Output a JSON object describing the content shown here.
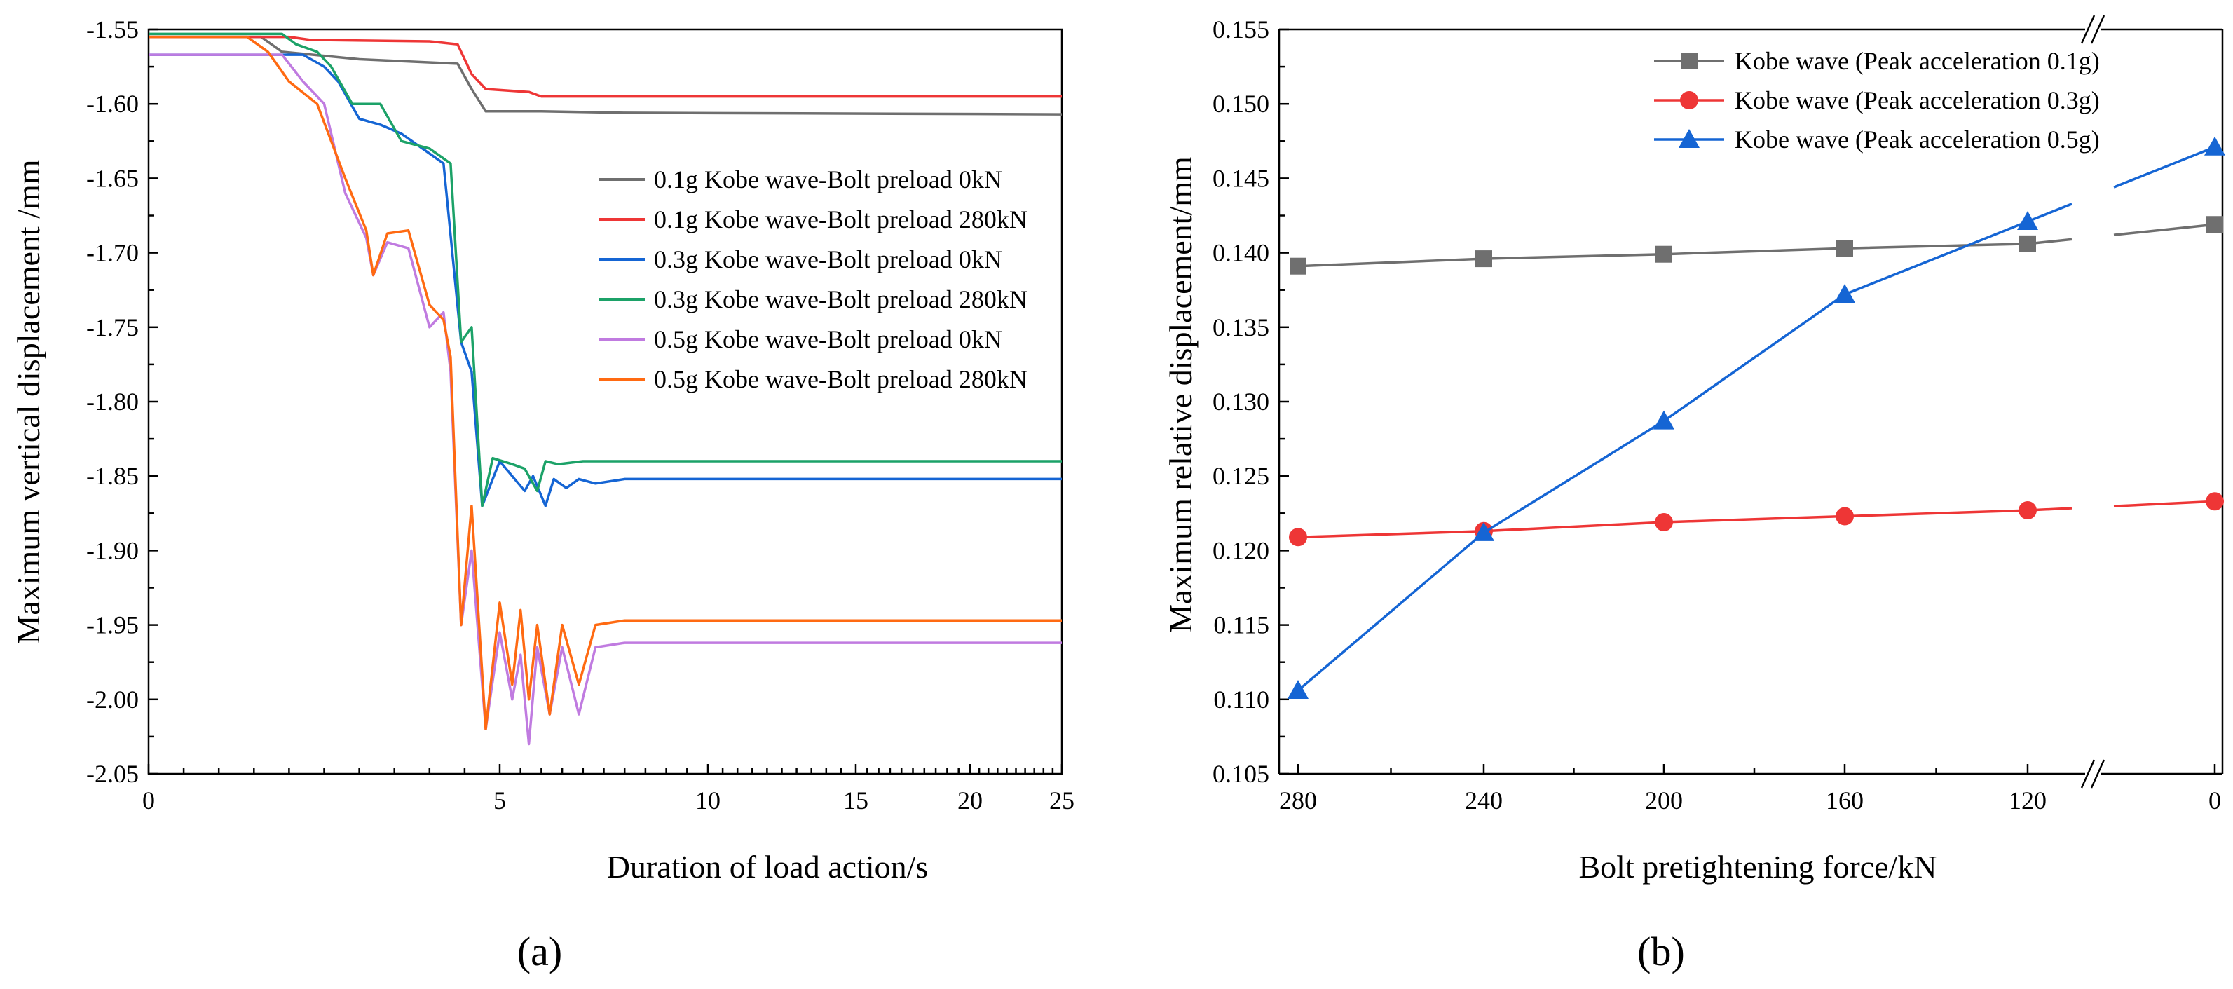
{
  "colors": {
    "gray": "#6f6f6f",
    "red": "#ee3636",
    "blue": "#1565d4",
    "green": "#1ca268",
    "purple": "#c07be0",
    "orange": "#ff6a12"
  },
  "panel_a_label": "(a)",
  "panel_b_label": "(b)",
  "chart_data": [
    {
      "type": "line",
      "title": "",
      "xlabel": "Duration of load action/s",
      "ylabel": "Maximum vertical displacement /mm",
      "xlim": [
        0,
        25
      ],
      "ylim": [
        -2.05,
        -1.55
      ],
      "x_tick_labels": [
        "0",
        "5",
        "10",
        "15",
        "20",
        "25"
      ],
      "y_tick_labels": [
        "-1.55",
        "-1.60",
        "-1.65",
        "-1.70",
        "-1.75",
        "-1.80",
        "-1.85",
        "-1.90",
        "-1.95",
        "-2.00",
        "-2.05"
      ],
      "legend_position": "right",
      "series": [
        {
          "name": "0.1g Kobe wave-Bolt preload 0kN",
          "color": "gray",
          "points": [
            [
              0,
              -1.555
            ],
            [
              1.6,
              -1.555
            ],
            [
              1.9,
              -1.565
            ],
            [
              3.0,
              -1.57
            ],
            [
              4.4,
              -1.573
            ],
            [
              4.6,
              -1.59
            ],
            [
              4.8,
              -1.605
            ],
            [
              6,
              -1.605
            ],
            [
              8,
              -1.606
            ],
            [
              25,
              -1.607
            ]
          ]
        },
        {
          "name": "0.1g Kobe wave-Bolt preload 280kN",
          "color": "red",
          "points": [
            [
              0,
              -1.555
            ],
            [
              2.0,
              -1.555
            ],
            [
              2.3,
              -1.557
            ],
            [
              4.0,
              -1.558
            ],
            [
              4.4,
              -1.56
            ],
            [
              4.6,
              -1.58
            ],
            [
              4.8,
              -1.59
            ],
            [
              5.7,
              -1.592
            ],
            [
              6.0,
              -1.595
            ],
            [
              25,
              -1.595
            ]
          ]
        },
        {
          "name": "0.3g Kobe wave-Bolt preload 0kN",
          "color": "blue",
          "points": [
            [
              0,
              -1.567
            ],
            [
              2.2,
              -1.567
            ],
            [
              2.5,
              -1.575
            ],
            [
              2.7,
              -1.585
            ],
            [
              3.0,
              -1.61
            ],
            [
              3.3,
              -1.614
            ],
            [
              3.6,
              -1.62
            ],
            [
              3.9,
              -1.63
            ],
            [
              4.2,
              -1.64
            ],
            [
              4.45,
              -1.76
            ],
            [
              4.6,
              -1.78
            ],
            [
              4.75,
              -1.87
            ],
            [
              5.0,
              -1.84
            ],
            [
              5.3,
              -1.85
            ],
            [
              5.6,
              -1.86
            ],
            [
              5.8,
              -1.85
            ],
            [
              6.1,
              -1.87
            ],
            [
              6.3,
              -1.852
            ],
            [
              6.6,
              -1.858
            ],
            [
              6.9,
              -1.852
            ],
            [
              7.3,
              -1.855
            ],
            [
              8,
              -1.852
            ],
            [
              25,
              -1.852
            ]
          ]
        },
        {
          "name": "0.3g Kobe wave-Bolt preload 280kN",
          "color": "green",
          "points": [
            [
              0,
              -1.553
            ],
            [
              1.9,
              -1.553
            ],
            [
              2.1,
              -1.56
            ],
            [
              2.4,
              -1.565
            ],
            [
              2.6,
              -1.575
            ],
            [
              2.9,
              -1.6
            ],
            [
              3.3,
              -1.6
            ],
            [
              3.6,
              -1.625
            ],
            [
              4.0,
              -1.63
            ],
            [
              4.3,
              -1.64
            ],
            [
              4.45,
              -1.76
            ],
            [
              4.6,
              -1.75
            ],
            [
              4.75,
              -1.87
            ],
            [
              4.9,
              -1.838
            ],
            [
              5.3,
              -1.842
            ],
            [
              5.6,
              -1.845
            ],
            [
              5.9,
              -1.86
            ],
            [
              6.1,
              -1.84
            ],
            [
              6.4,
              -1.842
            ],
            [
              7,
              -1.84
            ],
            [
              25,
              -1.84
            ]
          ]
        },
        {
          "name": "0.5g Kobe wave-Bolt preload 0kN",
          "color": "purple",
          "points": [
            [
              0,
              -1.567
            ],
            [
              1.9,
              -1.567
            ],
            [
              2.2,
              -1.585
            ],
            [
              2.5,
              -1.6
            ],
            [
              2.8,
              -1.66
            ],
            [
              3.1,
              -1.69
            ],
            [
              3.2,
              -1.715
            ],
            [
              3.4,
              -1.693
            ],
            [
              3.7,
              -1.697
            ],
            [
              4.0,
              -1.75
            ],
            [
              4.2,
              -1.74
            ],
            [
              4.3,
              -1.78
            ],
            [
              4.45,
              -1.95
            ],
            [
              4.6,
              -1.9
            ],
            [
              4.8,
              -2.02
            ],
            [
              5.0,
              -1.955
            ],
            [
              5.3,
              -2.0
            ],
            [
              5.5,
              -1.97
            ],
            [
              5.7,
              -2.03
            ],
            [
              5.9,
              -1.965
            ],
            [
              6.2,
              -2.01
            ],
            [
              6.5,
              -1.965
            ],
            [
              6.9,
              -2.01
            ],
            [
              7.3,
              -1.965
            ],
            [
              8,
              -1.962
            ],
            [
              25,
              -1.962
            ]
          ]
        },
        {
          "name": "0.5g Kobe wave-Bolt preload 280kN",
          "color": "orange",
          "points": [
            [
              0,
              -1.555
            ],
            [
              1.4,
              -1.555
            ],
            [
              1.7,
              -1.565
            ],
            [
              2.0,
              -1.585
            ],
            [
              2.4,
              -1.6
            ],
            [
              2.8,
              -1.65
            ],
            [
              3.1,
              -1.685
            ],
            [
              3.2,
              -1.715
            ],
            [
              3.4,
              -1.687
            ],
            [
              3.7,
              -1.685
            ],
            [
              4.0,
              -1.735
            ],
            [
              4.2,
              -1.745
            ],
            [
              4.3,
              -1.77
            ],
            [
              4.45,
              -1.95
            ],
            [
              4.6,
              -1.87
            ],
            [
              4.8,
              -2.02
            ],
            [
              5.0,
              -1.935
            ],
            [
              5.3,
              -1.99
            ],
            [
              5.5,
              -1.94
            ],
            [
              5.7,
              -2.0
            ],
            [
              5.9,
              -1.95
            ],
            [
              6.2,
              -2.01
            ],
            [
              6.5,
              -1.95
            ],
            [
              6.9,
              -1.99
            ],
            [
              7.3,
              -1.95
            ],
            [
              8,
              -1.947
            ],
            [
              25,
              -1.947
            ]
          ]
        }
      ]
    },
    {
      "type": "line",
      "title": "",
      "xlabel": "Bolt pretightening force/kN",
      "ylabel": "Maximum relative displacement/mm",
      "categories": [
        "280",
        "240",
        "200",
        "160",
        "120",
        "0"
      ],
      "ylim": [
        0.105,
        0.155
      ],
      "y_tick_labels": [
        "0.105",
        "0.110",
        "0.115",
        "0.120",
        "0.125",
        "0.130",
        "0.135",
        "0.140",
        "0.145",
        "0.150",
        "0.155"
      ],
      "axis_break_after": "120",
      "axis_break_symbol": "//",
      "legend_position": "top-right",
      "series": [
        {
          "name": "Kobe wave (Peak acceleration 0.1g)",
          "color": "gray",
          "marker": "square",
          "values": [
            0.1391,
            0.1396,
            0.1399,
            0.1403,
            0.1406,
            0.1419
          ]
        },
        {
          "name": "Kobe wave (Peak acceleration 0.3g)",
          "color": "red",
          "marker": "circle",
          "values": [
            0.1209,
            0.1213,
            0.1219,
            0.1223,
            0.1227,
            0.1233
          ]
        },
        {
          "name": "Kobe wave (Peak acceleration 0.5g)",
          "color": "blue",
          "marker": "triangle",
          "values": [
            0.1106,
            0.1212,
            0.1287,
            0.1372,
            0.1421,
            0.1471
          ]
        }
      ]
    }
  ]
}
